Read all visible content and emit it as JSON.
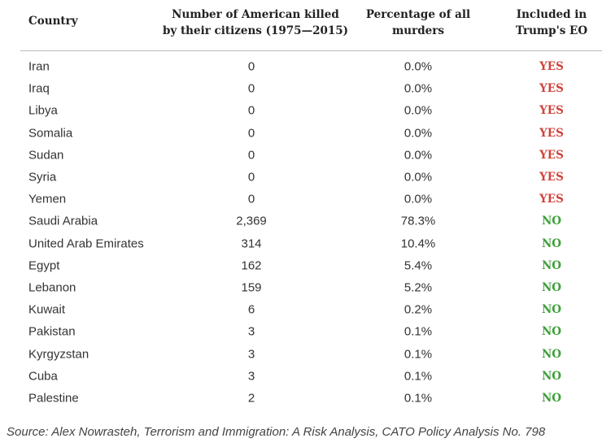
{
  "table": {
    "header": [
      [
        "Country"
      ],
      [
        "Number of American killed",
        "by their citizens (1975—2015)"
      ],
      [
        "Percentage of all",
        "murders"
      ],
      [
        "Included in",
        "Trump's EO"
      ]
    ],
    "rows": [
      {
        "country": "Iran",
        "killed": "0",
        "percent": "0.0%",
        "included": "YES",
        "color": "#d0423b"
      },
      {
        "country": "Iraq",
        "killed": "0",
        "percent": "0.0%",
        "included": "YES",
        "color": "#d0423b"
      },
      {
        "country": "Libya",
        "killed": "0",
        "percent": "0.0%",
        "included": "YES",
        "color": "#d0423b"
      },
      {
        "country": "Somalia",
        "killed": "0",
        "percent": "0.0%",
        "included": "YES",
        "color": "#d0423b"
      },
      {
        "country": "Sudan",
        "killed": "0",
        "percent": "0.0%",
        "included": "YES",
        "color": "#d0423b"
      },
      {
        "country": "Syria",
        "killed": "0",
        "percent": "0.0%",
        "included": "YES",
        "color": "#d0423b"
      },
      {
        "country": "Yemen",
        "killed": "0",
        "percent": "0.0%",
        "included": "YES",
        "color": "#d0423b"
      },
      {
        "country": "Saudi Arabia",
        "killed": "2,369",
        "percent": "78.3%",
        "included": "NO",
        "color": "#3f9f3a"
      },
      {
        "country": "United Arab Emirates",
        "killed": "314",
        "percent": "10.4%",
        "included": "NO",
        "color": "#3f9f3a"
      },
      {
        "country": "Egypt",
        "killed": "162",
        "percent": "5.4%",
        "included": "NO",
        "color": "#3f9f3a"
      },
      {
        "country": "Lebanon",
        "killed": "159",
        "percent": "5.2%",
        "included": "NO",
        "color": "#3f9f3a"
      },
      {
        "country": "Kuwait",
        "killed": "6",
        "percent": "0.2%",
        "included": "NO",
        "color": "#3f9f3a"
      },
      {
        "country": "Pakistan",
        "killed": "3",
        "percent": "0.1%",
        "included": "NO",
        "color": "#3f9f3a"
      },
      {
        "country": "Kyrgyzstan",
        "killed": "3",
        "percent": "0.1%",
        "included": "NO",
        "color": "#3f9f3a"
      },
      {
        "country": "Cuba",
        "killed": "3",
        "percent": "0.1%",
        "included": "NO",
        "color": "#3f9f3a"
      },
      {
        "country": "Palestine",
        "killed": "2",
        "percent": "0.1%",
        "included": "NO",
        "color": "#3f9f3a"
      }
    ]
  },
  "source": "Source: Alex Nowrasteh, Terrorism and Immigration: A Risk Analysis, CATO Policy Analysis No. 798"
}
